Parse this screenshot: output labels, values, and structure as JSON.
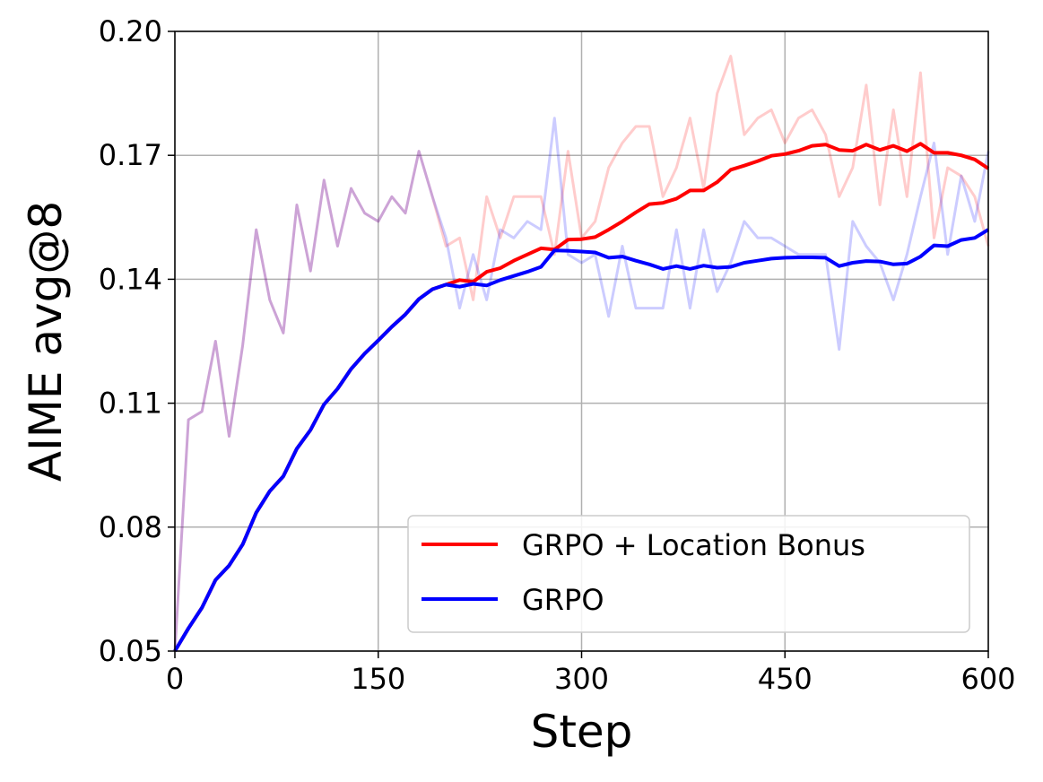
{
  "chart_data": {
    "type": "line",
    "xlabel": "Step",
    "ylabel": "AIME avg@8",
    "xlim": [
      0,
      600
    ],
    "ylim": [
      0.05,
      0.2
    ],
    "xticks": [
      0,
      150,
      300,
      450,
      600
    ],
    "xtick_labels": [
      "0",
      "150",
      "300",
      "450",
      "600"
    ],
    "yticks": [
      0.05,
      0.08,
      0.11,
      0.14,
      0.17,
      0.2
    ],
    "ytick_labels": [
      "0.05",
      "0.08",
      "0.11",
      "0.14",
      "0.17",
      "0.20"
    ],
    "grid": true,
    "legend_position": "bottom-right",
    "series": [
      {
        "name": "GRPO + Location Bonus",
        "color": "#ff0000",
        "raw": {
          "x": [
            0,
            10,
            20,
            30,
            40,
            50,
            60,
            70,
            80,
            90,
            100,
            110,
            120,
            130,
            140,
            150,
            160,
            170,
            180,
            190,
            200,
            210,
            220,
            230,
            240,
            250,
            260,
            270,
            280,
            290,
            300,
            310,
            320,
            330,
            340,
            350,
            360,
            370,
            380,
            390,
            400,
            410,
            420,
            430,
            440,
            450,
            460,
            470,
            480,
            490,
            500,
            510,
            520,
            530,
            540,
            550,
            560,
            570,
            580,
            590,
            600
          ],
          "y": [
            0.05,
            0.106,
            0.108,
            0.125,
            0.102,
            0.124,
            0.152,
            0.135,
            0.127,
            0.158,
            0.142,
            0.164,
            0.148,
            0.162,
            0.156,
            0.154,
            0.16,
            0.156,
            0.171,
            0.16,
            0.148,
            0.15,
            0.135,
            0.16,
            0.15,
            0.16,
            0.16,
            0.16,
            0.146,
            0.171,
            0.15,
            0.154,
            0.167,
            0.173,
            0.177,
            0.177,
            0.16,
            0.167,
            0.179,
            0.162,
            0.185,
            0.194,
            0.175,
            0.179,
            0.181,
            0.173,
            0.179,
            0.181,
            0.175,
            0.16,
            0.167,
            0.187,
            0.158,
            0.181,
            0.16,
            0.19,
            0.15,
            0.167,
            0.165,
            0.16,
            0.148
          ]
        },
        "smoothed": {
          "x": [
            0,
            10,
            20,
            30,
            40,
            50,
            60,
            70,
            80,
            90,
            100,
            110,
            120,
            130,
            140,
            150,
            160,
            170,
            180,
            190,
            200,
            210,
            220,
            230,
            240,
            250,
            260,
            270,
            280,
            290,
            300,
            310,
            320,
            330,
            340,
            350,
            360,
            370,
            380,
            390,
            400,
            410,
            420,
            430,
            440,
            450,
            460,
            470,
            480,
            490,
            500,
            510,
            520,
            530,
            540,
            550,
            560,
            570,
            580,
            590,
            600
          ],
          "y": [
            0.05,
            0.0555,
            0.0605,
            0.0672,
            0.0707,
            0.0758,
            0.0835,
            0.0887,
            0.0923,
            0.099,
            0.1035,
            0.1097,
            0.1135,
            0.1183,
            0.122,
            0.1252,
            0.1285,
            0.1315,
            0.1352,
            0.1376,
            0.1387,
            0.1398,
            0.1394,
            0.1418,
            0.1427,
            0.1445,
            0.146,
            0.1475,
            0.1472,
            0.1496,
            0.1497,
            0.1502,
            0.152,
            0.154,
            0.1562,
            0.1582,
            0.1585,
            0.1595,
            0.1615,
            0.1615,
            0.1635,
            0.1665,
            0.1675,
            0.1686,
            0.1699,
            0.1703,
            0.1711,
            0.1723,
            0.1726,
            0.1713,
            0.1711,
            0.1726,
            0.1713,
            0.1723,
            0.171,
            0.1728,
            0.1706,
            0.1706,
            0.17,
            0.169,
            0.1668
          ]
        }
      },
      {
        "name": "GRPO",
        "color": "#0000ff",
        "raw": {
          "x": [
            0,
            10,
            20,
            30,
            40,
            50,
            60,
            70,
            80,
            90,
            100,
            110,
            120,
            130,
            140,
            150,
            160,
            170,
            180,
            190,
            200,
            210,
            220,
            230,
            240,
            250,
            260,
            270,
            280,
            290,
            300,
            310,
            320,
            330,
            340,
            350,
            360,
            370,
            380,
            390,
            400,
            410,
            420,
            430,
            440,
            450,
            460,
            470,
            480,
            490,
            500,
            510,
            520,
            530,
            540,
            550,
            560,
            570,
            580,
            590,
            600
          ],
          "y": [
            0.05,
            0.106,
            0.108,
            0.125,
            0.102,
            0.124,
            0.152,
            0.135,
            0.127,
            0.158,
            0.142,
            0.164,
            0.148,
            0.162,
            0.156,
            0.154,
            0.16,
            0.156,
            0.171,
            0.16,
            0.15,
            0.133,
            0.146,
            0.135,
            0.152,
            0.15,
            0.154,
            0.152,
            0.179,
            0.146,
            0.144,
            0.146,
            0.131,
            0.148,
            0.133,
            0.133,
            0.133,
            0.152,
            0.133,
            0.152,
            0.137,
            0.144,
            0.154,
            0.15,
            0.15,
            0.148,
            0.146,
            0.146,
            0.146,
            0.123,
            0.154,
            0.148,
            0.144,
            0.135,
            0.146,
            0.16,
            0.173,
            0.146,
            0.165,
            0.154,
            0.171
          ]
        },
        "smoothed": {
          "x": [
            0,
            10,
            20,
            30,
            40,
            50,
            60,
            70,
            80,
            90,
            100,
            110,
            120,
            130,
            140,
            150,
            160,
            170,
            180,
            190,
            200,
            210,
            220,
            230,
            240,
            250,
            260,
            270,
            280,
            290,
            300,
            310,
            320,
            330,
            340,
            350,
            360,
            370,
            380,
            390,
            400,
            410,
            420,
            430,
            440,
            450,
            460,
            470,
            480,
            490,
            500,
            510,
            520,
            530,
            540,
            550,
            560,
            570,
            580,
            590,
            600
          ],
          "y": [
            0.05,
            0.0555,
            0.0605,
            0.0672,
            0.0707,
            0.0758,
            0.0835,
            0.0887,
            0.0923,
            0.099,
            0.1035,
            0.1097,
            0.1135,
            0.1183,
            0.122,
            0.1252,
            0.1285,
            0.1315,
            0.1352,
            0.1376,
            0.1387,
            0.1382,
            0.1389,
            0.1385,
            0.1398,
            0.1408,
            0.1418,
            0.143,
            0.147,
            0.1469,
            0.1467,
            0.1465,
            0.1452,
            0.1455,
            0.1445,
            0.1436,
            0.1425,
            0.1432,
            0.1425,
            0.1433,
            0.1428,
            0.143,
            0.144,
            0.1445,
            0.145,
            0.1452,
            0.1453,
            0.1453,
            0.1452,
            0.1432,
            0.144,
            0.1444,
            0.1443,
            0.1436,
            0.1438,
            0.1455,
            0.1482,
            0.148,
            0.1495,
            0.15,
            0.152
          ]
        }
      }
    ]
  }
}
